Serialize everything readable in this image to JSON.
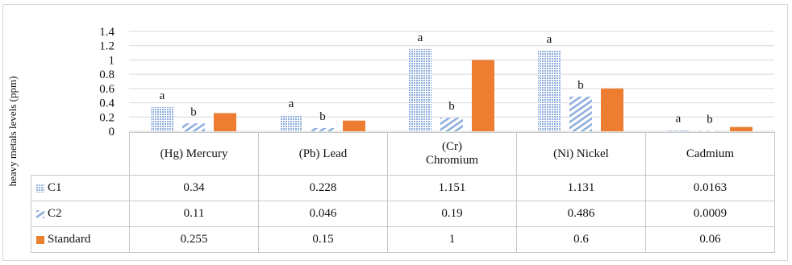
{
  "chart_data": {
    "type": "bar",
    "ylabel": "heavy metals levels (ppm)",
    "xlabel": "",
    "ylim": [
      0,
      1.4
    ],
    "yticks": [
      "0",
      "0.2",
      "0.4",
      "0.6",
      "0.8",
      "1",
      "1.2",
      "1.4"
    ],
    "grid": true,
    "legend": "data-table",
    "categories": [
      "(Hg) Mercury",
      "(Pb) Lead",
      "(Cr) Chromium",
      "(Ni) Nickel",
      "Cadmium"
    ],
    "series": [
      {
        "name": "C1",
        "values": [
          0.34,
          0.228,
          1.151,
          1.131,
          0.0163
        ],
        "labels": [
          "0.34",
          "0.228",
          "1.151",
          "1.131",
          "0.0163"
        ],
        "annotations": [
          "a",
          "a",
          "a",
          "a",
          "a"
        ],
        "color": "#9DB9E3",
        "pattern": "dotted"
      },
      {
        "name": "C2",
        "values": [
          0.11,
          0.046,
          0.19,
          0.486,
          0.0009
        ],
        "labels": [
          "0.11",
          "0.046",
          "0.19",
          "0.486",
          "0.0009"
        ],
        "annotations": [
          "b",
          "b",
          "b",
          "b",
          "b"
        ],
        "color": "#9DB9E3",
        "pattern": "diagonal"
      },
      {
        "name": "Standard",
        "values": [
          0.255,
          0.15,
          1,
          0.6,
          0.06
        ],
        "labels": [
          "0.255",
          "0.15",
          "1",
          "0.6",
          "0.06"
        ],
        "annotations": [
          "",
          "",
          "",
          "",
          ""
        ],
        "color": "#ED7D31",
        "pattern": "solid"
      }
    ]
  }
}
